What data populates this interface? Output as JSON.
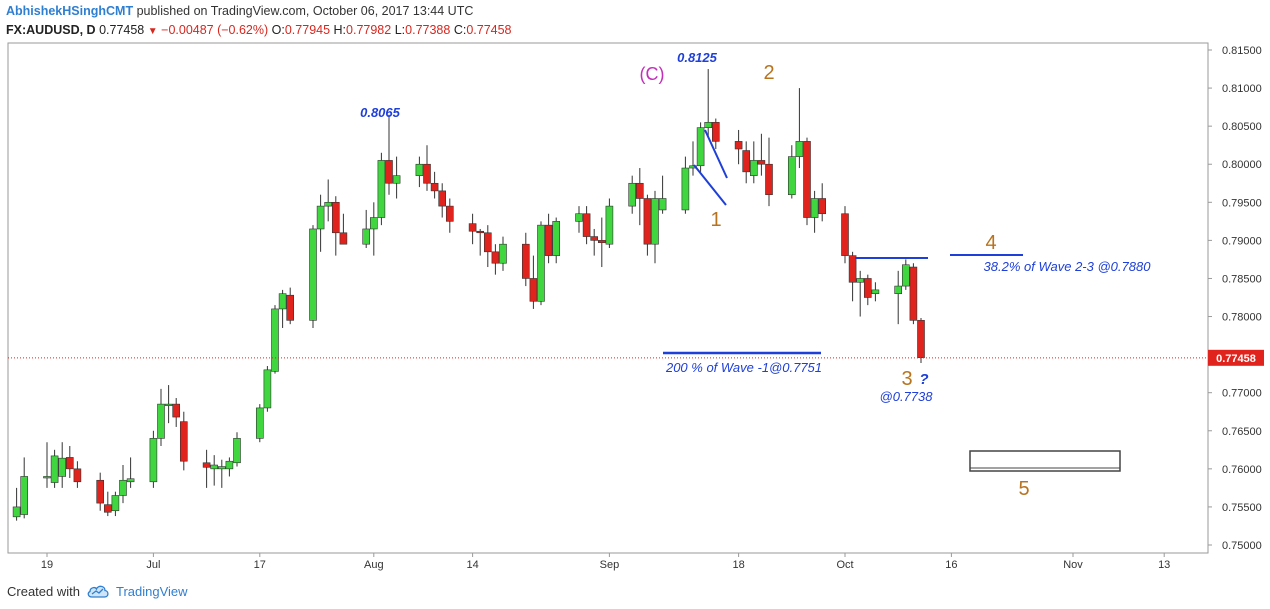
{
  "header": {
    "author": "AbhishekHSinghCMT",
    "published": "published on TradingView.com, October 06, 2017 13:44 UTC"
  },
  "ticker": {
    "symbol": "FX:AUDUSD, D",
    "last": "0.77458",
    "change": "−0.00487 (−0.62%)",
    "o_label": "O:",
    "o": "0.77945",
    "h_label": "H:",
    "h": "0.77982",
    "l_label": "L:",
    "l": "0.77388",
    "c_label": "C:",
    "c": "0.77458"
  },
  "footer": {
    "created_with": "Created with",
    "brand": "TradingView",
    "logo_icon": "tradingview-cloud-icon"
  },
  "colors": {
    "up": "#3fd63f",
    "down": "#e0231c",
    "wave": "#b8731e",
    "annotation": "#1e3fd8",
    "waveC": "#c22fb8",
    "price_line": "#d6271f"
  },
  "chart_data": {
    "type": "candlestick",
    "ylim": [
      0.7495,
      0.816
    ],
    "yticks": [
      "0.81500",
      "0.81000",
      "0.80500",
      "0.80000",
      "0.79500",
      "0.79000",
      "0.78500",
      "0.78000",
      "0.77500",
      "0.77000",
      "0.76500",
      "0.76000",
      "0.75500",
      "0.75000"
    ],
    "xticks": [
      {
        "label": "19",
        "date": "2017-06-19"
      },
      {
        "label": "Jul",
        "date": "2017-07-03"
      },
      {
        "label": "17",
        "date": "2017-07-17"
      },
      {
        "label": "Aug",
        "date": "2017-08-01"
      },
      {
        "label": "14",
        "date": "2017-08-14"
      },
      {
        "label": "Sep",
        "date": "2017-09-01"
      },
      {
        "label": "18",
        "date": "2017-09-18"
      },
      {
        "label": "Oct",
        "date": "2017-10-02"
      },
      {
        "label": "16",
        "date": "2017-10-16"
      },
      {
        "label": "Nov",
        "date": "2017-11-01"
      },
      {
        "label": "13",
        "date": "2017-11-13"
      }
    ],
    "last_price": "0.77458",
    "candles": [
      {
        "date": "2017-06-15",
        "o": 0.7537,
        "h": 0.7575,
        "l": 0.7532,
        "c": 0.755
      },
      {
        "date": "2017-06-16",
        "o": 0.754,
        "h": 0.7615,
        "l": 0.7535,
        "c": 0.759
      },
      {
        "date": "2017-06-19",
        "o": 0.7588,
        "h": 0.7635,
        "l": 0.7575,
        "c": 0.759
      },
      {
        "date": "2017-06-20",
        "o": 0.7582,
        "h": 0.7625,
        "l": 0.7575,
        "c": 0.7617
      },
      {
        "date": "2017-06-21",
        "o": 0.759,
        "h": 0.7635,
        "l": 0.7575,
        "c": 0.7614
      },
      {
        "date": "2017-06-22",
        "o": 0.7615,
        "h": 0.763,
        "l": 0.7588,
        "c": 0.76
      },
      {
        "date": "2017-06-23",
        "o": 0.76,
        "h": 0.761,
        "l": 0.7575,
        "c": 0.7583
      },
      {
        "date": "2017-06-26",
        "o": 0.7585,
        "h": 0.7595,
        "l": 0.7545,
        "c": 0.7555
      },
      {
        "date": "2017-06-27",
        "o": 0.7553,
        "h": 0.757,
        "l": 0.7538,
        "c": 0.7543
      },
      {
        "date": "2017-06-28",
        "o": 0.7545,
        "h": 0.757,
        "l": 0.7538,
        "c": 0.7565
      },
      {
        "date": "2017-06-29",
        "o": 0.7565,
        "h": 0.7605,
        "l": 0.7555,
        "c": 0.7585
      },
      {
        "date": "2017-06-30",
        "o": 0.7583,
        "h": 0.7615,
        "l": 0.7575,
        "c": 0.7587
      },
      {
        "date": "2017-07-03",
        "o": 0.7583,
        "h": 0.765,
        "l": 0.7575,
        "c": 0.764
      },
      {
        "date": "2017-07-04",
        "o": 0.764,
        "h": 0.7705,
        "l": 0.763,
        "c": 0.7685
      },
      {
        "date": "2017-07-05",
        "o": 0.7685,
        "h": 0.771,
        "l": 0.766,
        "c": 0.7685
      },
      {
        "date": "2017-07-06",
        "o": 0.7685,
        "h": 0.7693,
        "l": 0.7655,
        "c": 0.7668
      },
      {
        "date": "2017-07-07",
        "o": 0.7662,
        "h": 0.7675,
        "l": 0.7598,
        "c": 0.761
      },
      {
        "date": "2017-07-10",
        "o": 0.7608,
        "h": 0.7625,
        "l": 0.7575,
        "c": 0.7602
      },
      {
        "date": "2017-07-11",
        "o": 0.76,
        "h": 0.7618,
        "l": 0.7578,
        "c": 0.7605
      },
      {
        "date": "2017-07-12",
        "o": 0.76,
        "h": 0.7612,
        "l": 0.7575,
        "c": 0.7603
      },
      {
        "date": "2017-07-13",
        "o": 0.76,
        "h": 0.7615,
        "l": 0.759,
        "c": 0.761
      },
      {
        "date": "2017-07-14",
        "o": 0.7608,
        "h": 0.7648,
        "l": 0.7603,
        "c": 0.764
      },
      {
        "date": "2017-07-17",
        "o": 0.764,
        "h": 0.7685,
        "l": 0.7635,
        "c": 0.768
      },
      {
        "date": "2017-07-18",
        "o": 0.768,
        "h": 0.7735,
        "l": 0.7675,
        "c": 0.773
      },
      {
        "date": "2017-07-19",
        "o": 0.7728,
        "h": 0.7815,
        "l": 0.7725,
        "c": 0.781
      },
      {
        "date": "2017-07-20",
        "o": 0.781,
        "h": 0.7835,
        "l": 0.7785,
        "c": 0.783
      },
      {
        "date": "2017-07-21",
        "o": 0.7828,
        "h": 0.7838,
        "l": 0.779,
        "c": 0.7795
      },
      {
        "date": "2017-07-24",
        "o": 0.7795,
        "h": 0.792,
        "l": 0.7785,
        "c": 0.7915
      },
      {
        "date": "2017-07-25",
        "o": 0.7915,
        "h": 0.796,
        "l": 0.7885,
        "c": 0.7945
      },
      {
        "date": "2017-07-26",
        "o": 0.7945,
        "h": 0.798,
        "l": 0.7925,
        "c": 0.795
      },
      {
        "date": "2017-07-27",
        "o": 0.795,
        "h": 0.7958,
        "l": 0.788,
        "c": 0.791
      },
      {
        "date": "2017-07-28",
        "o": 0.791,
        "h": 0.7935,
        "l": 0.7895,
        "c": 0.7895
      },
      {
        "date": "2017-07-31",
        "o": 0.7895,
        "h": 0.794,
        "l": 0.789,
        "c": 0.7915
      },
      {
        "date": "2017-08-01",
        "o": 0.7915,
        "h": 0.795,
        "l": 0.788,
        "c": 0.793
      },
      {
        "date": "2017-08-02",
        "o": 0.793,
        "h": 0.8015,
        "l": 0.792,
        "c": 0.8005
      },
      {
        "date": "2017-08-03",
        "o": 0.8005,
        "h": 0.8065,
        "l": 0.796,
        "c": 0.7975
      },
      {
        "date": "2017-08-04",
        "o": 0.7975,
        "h": 0.801,
        "l": 0.7955,
        "c": 0.7985
      },
      {
        "date": "2017-08-07",
        "o": 0.7985,
        "h": 0.801,
        "l": 0.797,
        "c": 0.8
      },
      {
        "date": "2017-08-08",
        "o": 0.8,
        "h": 0.8025,
        "l": 0.7965,
        "c": 0.7975
      },
      {
        "date": "2017-08-09",
        "o": 0.7975,
        "h": 0.799,
        "l": 0.7955,
        "c": 0.7965
      },
      {
        "date": "2017-08-10",
        "o": 0.7965,
        "h": 0.7975,
        "l": 0.793,
        "c": 0.7945
      },
      {
        "date": "2017-08-11",
        "o": 0.7945,
        "h": 0.7955,
        "l": 0.791,
        "c": 0.7925
      },
      {
        "date": "2017-08-14",
        "o": 0.7922,
        "h": 0.7935,
        "l": 0.7895,
        "c": 0.7912
      },
      {
        "date": "2017-08-15",
        "o": 0.7912,
        "h": 0.7915,
        "l": 0.788,
        "c": 0.791
      },
      {
        "date": "2017-08-16",
        "o": 0.791,
        "h": 0.792,
        "l": 0.7865,
        "c": 0.7885
      },
      {
        "date": "2017-08-17",
        "o": 0.7885,
        "h": 0.7895,
        "l": 0.7855,
        "c": 0.787
      },
      {
        "date": "2017-08-18",
        "o": 0.787,
        "h": 0.7905,
        "l": 0.786,
        "c": 0.7895
      },
      {
        "date": "2017-08-21",
        "o": 0.7895,
        "h": 0.791,
        "l": 0.784,
        "c": 0.785
      },
      {
        "date": "2017-08-22",
        "o": 0.785,
        "h": 0.788,
        "l": 0.781,
        "c": 0.782
      },
      {
        "date": "2017-08-23",
        "o": 0.782,
        "h": 0.7925,
        "l": 0.7815,
        "c": 0.792
      },
      {
        "date": "2017-08-24",
        "o": 0.792,
        "h": 0.7935,
        "l": 0.787,
        "c": 0.788
      },
      {
        "date": "2017-08-25",
        "o": 0.788,
        "h": 0.793,
        "l": 0.787,
        "c": 0.7925
      },
      {
        "date": "2017-08-28",
        "o": 0.7925,
        "h": 0.7945,
        "l": 0.791,
        "c": 0.7935
      },
      {
        "date": "2017-08-29",
        "o": 0.7935,
        "h": 0.7945,
        "l": 0.7895,
        "c": 0.7905
      },
      {
        "date": "2017-08-30",
        "o": 0.7905,
        "h": 0.7915,
        "l": 0.788,
        "c": 0.79
      },
      {
        "date": "2017-08-31",
        "o": 0.79,
        "h": 0.793,
        "l": 0.7865,
        "c": 0.7897
      },
      {
        "date": "2017-09-01",
        "o": 0.7895,
        "h": 0.7955,
        "l": 0.789,
        "c": 0.7945
      },
      {
        "date": "2017-09-04",
        "o": 0.7945,
        "h": 0.7985,
        "l": 0.7935,
        "c": 0.7975
      },
      {
        "date": "2017-09-05",
        "o": 0.7975,
        "h": 0.7995,
        "l": 0.792,
        "c": 0.7955
      },
      {
        "date": "2017-09-06",
        "o": 0.7955,
        "h": 0.796,
        "l": 0.788,
        "c": 0.7895
      },
      {
        "date": "2017-09-07",
        "o": 0.7895,
        "h": 0.7965,
        "l": 0.787,
        "c": 0.7955
      },
      {
        "date": "2017-09-08",
        "o": 0.794,
        "h": 0.7985,
        "l": 0.7935,
        "c": 0.7955
      },
      {
        "date": "2017-09-11",
        "o": 0.794,
        "h": 0.801,
        "l": 0.7935,
        "c": 0.7995
      },
      {
        "date": "2017-09-12",
        "o": 0.7995,
        "h": 0.803,
        "l": 0.7985,
        "c": 0.7998
      },
      {
        "date": "2017-09-13",
        "o": 0.7998,
        "h": 0.8055,
        "l": 0.799,
        "c": 0.8048
      },
      {
        "date": "2017-09-14",
        "o": 0.8048,
        "h": 0.8125,
        "l": 0.8035,
        "c": 0.8055
      },
      {
        "date": "2017-09-15",
        "o": 0.8055,
        "h": 0.806,
        "l": 0.802,
        "c": 0.803
      },
      {
        "date": "2017-09-18",
        "o": 0.803,
        "h": 0.8045,
        "l": 0.8,
        "c": 0.802
      },
      {
        "date": "2017-09-19",
        "o": 0.8018,
        "h": 0.803,
        "l": 0.7975,
        "c": 0.799
      },
      {
        "date": "2017-09-20",
        "o": 0.7985,
        "h": 0.803,
        "l": 0.7975,
        "c": 0.8005
      },
      {
        "date": "2017-09-21",
        "o": 0.8005,
        "h": 0.804,
        "l": 0.7985,
        "c": 0.8
      },
      {
        "date": "2017-09-22",
        "o": 0.8,
        "h": 0.8035,
        "l": 0.7945,
        "c": 0.796
      },
      {
        "date": "2017-09-25",
        "o": 0.796,
        "h": 0.8025,
        "l": 0.7955,
        "c": 0.801
      },
      {
        "date": "2017-09-26",
        "o": 0.801,
        "h": 0.81,
        "l": 0.7995,
        "c": 0.803
      },
      {
        "date": "2017-09-27",
        "o": 0.803,
        "h": 0.8035,
        "l": 0.792,
        "c": 0.793
      },
      {
        "date": "2017-09-28",
        "o": 0.793,
        "h": 0.7965,
        "l": 0.791,
        "c": 0.7955
      },
      {
        "date": "2017-09-29",
        "o": 0.7955,
        "h": 0.7975,
        "l": 0.7925,
        "c": 0.7935
      },
      {
        "date": "2017-10-02",
        "o": 0.7935,
        "h": 0.7945,
        "l": 0.787,
        "c": 0.788
      },
      {
        "date": "2017-10-03",
        "o": 0.788,
        "h": 0.7885,
        "l": 0.782,
        "c": 0.7845
      },
      {
        "date": "2017-10-04",
        "o": 0.7845,
        "h": 0.786,
        "l": 0.78,
        "c": 0.785
      },
      {
        "date": "2017-10-05",
        "o": 0.785,
        "h": 0.7855,
        "l": 0.7815,
        "c": 0.7825
      },
      {
        "date": "2017-10-06",
        "o": 0.783,
        "h": 0.7845,
        "l": 0.782,
        "c": 0.7835
      },
      {
        "date": "2017-10-09",
        "o": 0.783,
        "h": 0.786,
        "l": 0.779,
        "c": 0.784
      },
      {
        "date": "2017-10-10",
        "o": 0.784,
        "h": 0.7875,
        "l": 0.7835,
        "c": 0.7868
      },
      {
        "date": "2017-10-11",
        "o": 0.7865,
        "h": 0.787,
        "l": 0.779,
        "c": 0.7795
      },
      {
        "date": "2017-10-12",
        "o": 0.7795,
        "h": 0.7798,
        "l": 0.7739,
        "c": 0.7746
      }
    ],
    "annotations": {
      "waveC_label": "(C)",
      "peak_8125": "0.8125",
      "peak_8065": "0.8065",
      "wave1": "1",
      "wave2": "2",
      "wave3": "3",
      "wave3_q": "?",
      "wave3_target": "@0.7738",
      "wave4": "4",
      "wave5": "5",
      "fib_382": "38.2% of Wave 2-3 @0.7880",
      "ext_200": "200 % of Wave -1@0.7751"
    }
  }
}
